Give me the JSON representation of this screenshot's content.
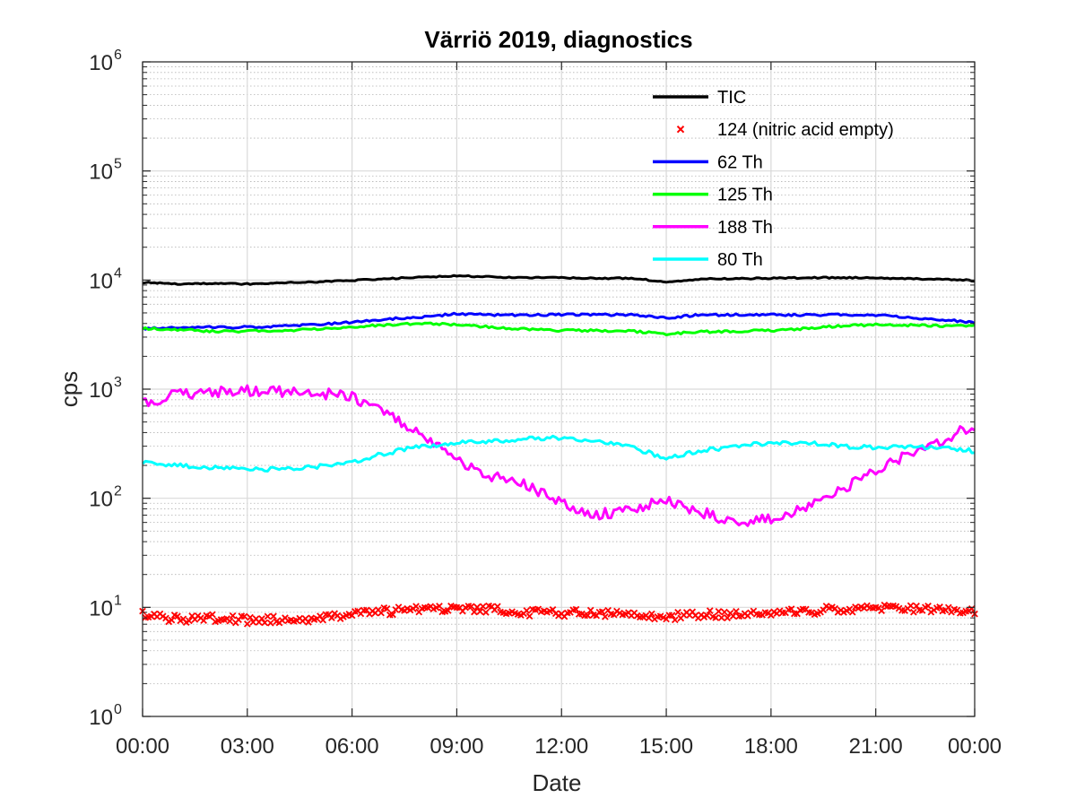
{
  "chart_data": {
    "type": "line",
    "title": "Värriö 2019, diagnostics",
    "xlabel": "Date",
    "ylabel": "cps",
    "yscale": "log",
    "ylim": [
      1,
      1000000
    ],
    "xlim": [
      "00:00",
      "23:50"
    ],
    "x_tick_labels": [
      "00:00",
      "03:00",
      "06:00",
      "09:00",
      "12:00",
      "15:00",
      "18:00",
      "21:00",
      "00:00"
    ],
    "y_tick_labels": [
      {
        "base": "10",
        "exp": "0",
        "value": 1
      },
      {
        "base": "10",
        "exp": "1",
        "value": 10
      },
      {
        "base": "10",
        "exp": "2",
        "value": 100
      },
      {
        "base": "10",
        "exp": "3",
        "value": 1000
      },
      {
        "base": "10",
        "exp": "4",
        "value": 10000
      },
      {
        "base": "10",
        "exp": "5",
        "value": 100000
      },
      {
        "base": "10",
        "exp": "6",
        "value": 1000000
      }
    ],
    "grid": true,
    "legend_position": "top-right",
    "x": [
      "00:00",
      "01:00",
      "02:00",
      "03:00",
      "04:00",
      "05:00",
      "06:00",
      "07:00",
      "08:00",
      "09:00",
      "10:00",
      "11:00",
      "12:00",
      "13:00",
      "14:00",
      "15:00",
      "16:00",
      "17:00",
      "18:00",
      "19:00",
      "20:00",
      "21:00",
      "22:00",
      "23:00",
      "23:50"
    ],
    "series": [
      {
        "name": "TIC",
        "color": "#000000",
        "style": "line",
        "values": [
          9500,
          9200,
          9300,
          9200,
          9400,
          9600,
          9900,
          10300,
          10600,
          10900,
          10700,
          10500,
          10500,
          10400,
          10400,
          9600,
          10200,
          10300,
          10400,
          10500,
          10500,
          10500,
          10300,
          10100,
          9900
        ]
      },
      {
        "name": "124 (nitric acid empty)",
        "color": "#ff0000",
        "style": "marker",
        "values": [
          8.6,
          7.8,
          8.0,
          7.6,
          7.7,
          8.0,
          8.6,
          9.2,
          9.6,
          10.0,
          9.6,
          9.0,
          8.8,
          8.9,
          8.8,
          8.2,
          8.6,
          8.6,
          8.8,
          9.2,
          9.7,
          9.9,
          9.7,
          9.5,
          9.4
        ]
      },
      {
        "name": "62 Th",
        "color": "#0000ff",
        "style": "line",
        "values": [
          3600,
          3650,
          3700,
          3700,
          3800,
          3900,
          4100,
          4400,
          4600,
          4900,
          4800,
          4800,
          4800,
          4800,
          4800,
          4500,
          4800,
          4800,
          4800,
          4800,
          4800,
          4800,
          4500,
          4300,
          4100
        ]
      },
      {
        "name": "125 Th",
        "color": "#00ff00",
        "style": "line",
        "values": [
          3600,
          3500,
          3400,
          3400,
          3450,
          3550,
          3700,
          3900,
          4000,
          3900,
          3700,
          3550,
          3450,
          3450,
          3400,
          3200,
          3350,
          3400,
          3450,
          3600,
          3800,
          3900,
          3850,
          3800,
          3800
        ]
      },
      {
        "name": "188 Th",
        "color": "#ff00ff",
        "style": "line",
        "values": [
          750,
          900,
          950,
          960,
          950,
          920,
          850,
          600,
          380,
          220,
          160,
          130,
          90,
          70,
          80,
          95,
          75,
          60,
          65,
          80,
          120,
          180,
          260,
          350,
          470
        ]
      },
      {
        "name": "80 Th",
        "color": "#00ffff",
        "style": "line",
        "values": [
          215,
          200,
          190,
          185,
          185,
          195,
          215,
          260,
          300,
          320,
          330,
          350,
          360,
          330,
          290,
          235,
          270,
          300,
          320,
          320,
          300,
          290,
          300,
          290,
          270
        ]
      }
    ]
  }
}
